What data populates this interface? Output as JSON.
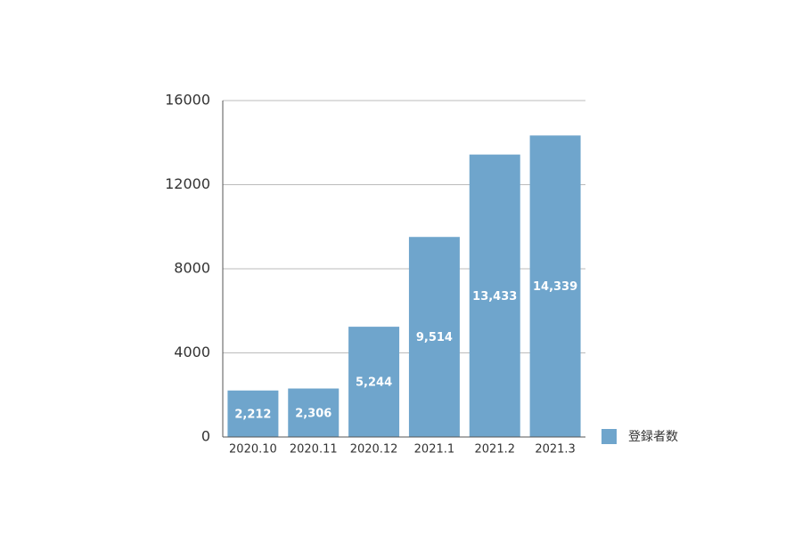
{
  "chart_data": {
    "type": "bar",
    "categories": [
      "2020.10",
      "2020.11",
      "2020.12",
      "2021.1",
      "2021.2",
      "2021.3"
    ],
    "series": [
      {
        "name": "登録者数",
        "color": "#6fa5cc",
        "values": [
          2212,
          2306,
          5244,
          9514,
          13433,
          14339
        ],
        "value_labels": [
          "2,212",
          "2,306",
          "5,244",
          "9,514",
          "13,433",
          "14,339"
        ]
      }
    ],
    "ylim": [
      0,
      16000
    ],
    "yticks": [
      0,
      4000,
      8000,
      12000,
      16000
    ],
    "grid": true,
    "legend": "right"
  }
}
